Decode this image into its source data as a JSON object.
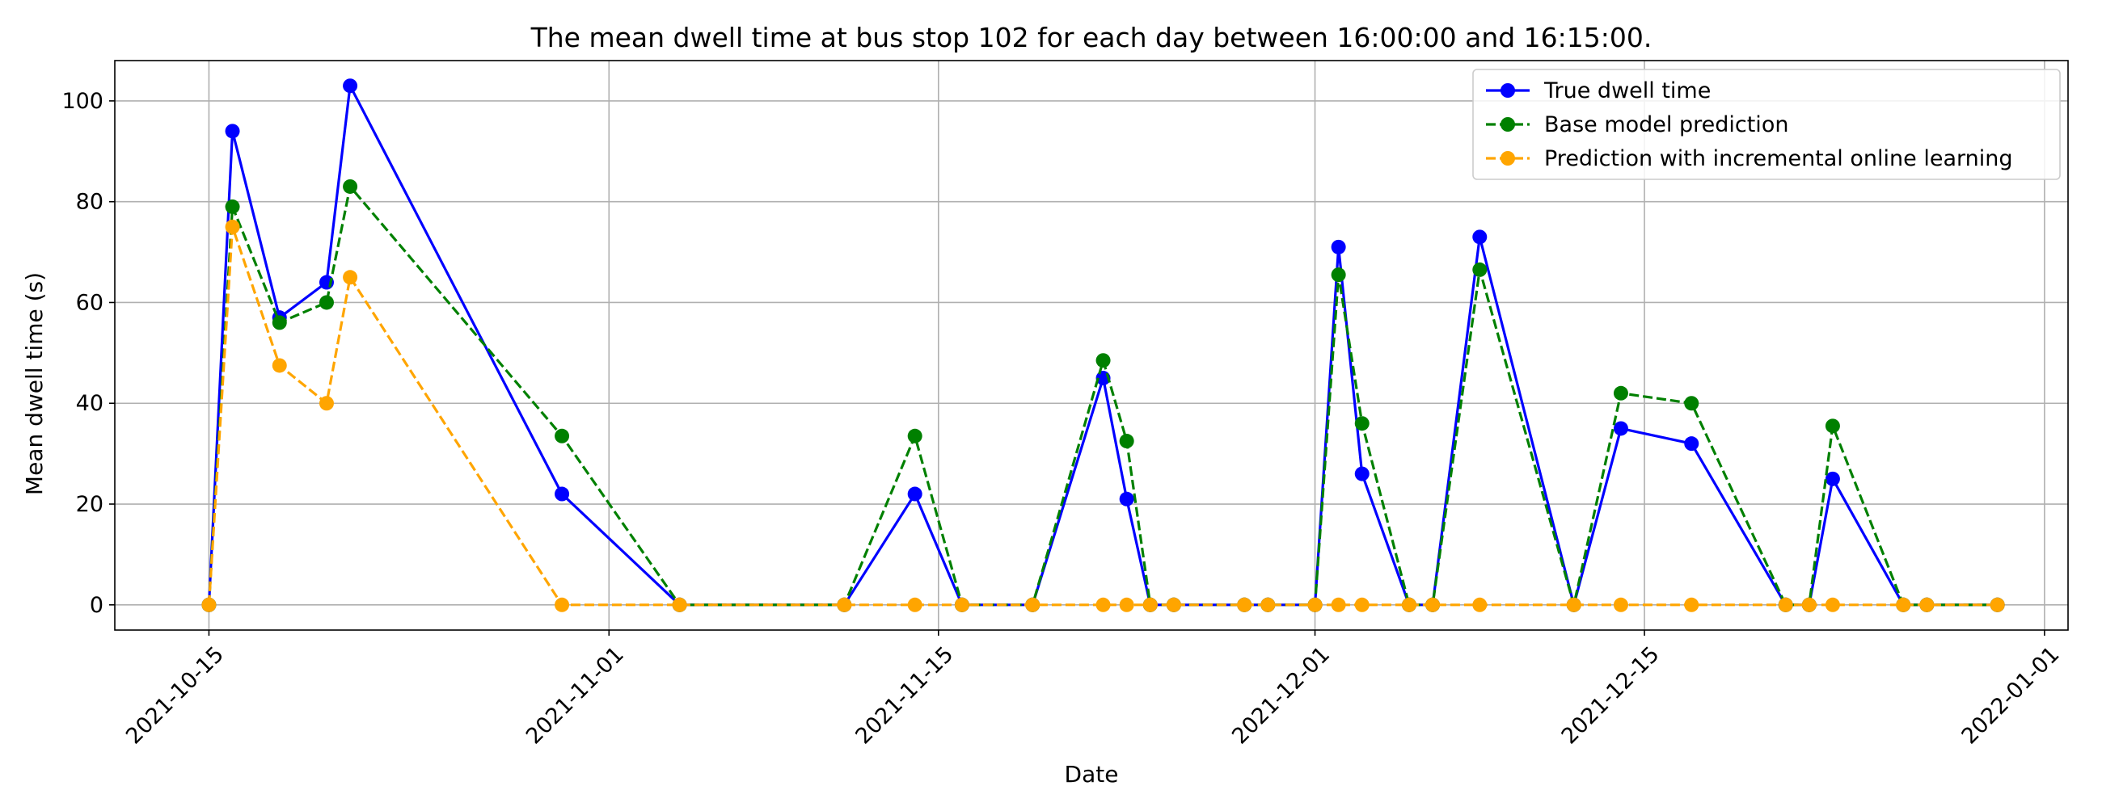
{
  "chart_data": {
    "type": "line",
    "title": "The mean dwell time at bus stop 102 for each day between 16:00:00 and 16:15:00.",
    "xlabel": "Date",
    "ylabel": "Mean dwell time (s)",
    "x_range": [
      "2021-10-11",
      "2022-01-02"
    ],
    "ylim": [
      -5,
      108
    ],
    "x_ticks": [
      "2021-10-15",
      "2021-11-01",
      "2021-11-15",
      "2021-12-01",
      "2021-12-15",
      "2022-01-01"
    ],
    "y_ticks": [
      0,
      20,
      40,
      60,
      80,
      100
    ],
    "grid": true,
    "legend_position": "top-right",
    "x": [
      "2021-10-15",
      "2021-10-16",
      "2021-10-18",
      "2021-10-20",
      "2021-10-21",
      "2021-10-30",
      "2021-11-04",
      "2021-11-11",
      "2021-11-14",
      "2021-11-16",
      "2021-11-19",
      "2021-11-22",
      "2021-11-23",
      "2021-11-24",
      "2021-11-25",
      "2021-11-28",
      "2021-11-29",
      "2021-12-01",
      "2021-12-02",
      "2021-12-03",
      "2021-12-05",
      "2021-12-06",
      "2021-12-08",
      "2021-12-12",
      "2021-12-14",
      "2021-12-17",
      "2021-12-21",
      "2021-12-22",
      "2021-12-23",
      "2021-12-26",
      "2021-12-27",
      "2021-12-30"
    ],
    "series": [
      {
        "name": "True dwell time",
        "color": "#0000ff",
        "linestyle": "solid",
        "values": [
          0,
          94,
          57,
          64,
          103,
          22,
          0,
          0,
          22,
          0,
          0,
          45,
          21,
          0,
          0,
          0,
          0,
          0,
          71,
          26,
          0,
          0,
          73,
          0,
          35,
          32,
          0,
          0,
          25,
          0,
          0,
          0
        ]
      },
      {
        "name": "Base model prediction",
        "color": "#008000",
        "linestyle": "dashed",
        "values": [
          0,
          79,
          56,
          60,
          83,
          33.5,
          0,
          0,
          33.5,
          0,
          0,
          48.5,
          32.5,
          0,
          0,
          0,
          0,
          0,
          65.5,
          36,
          0,
          0,
          66.5,
          0,
          42,
          40,
          0,
          0,
          35.5,
          0,
          0,
          0
        ]
      },
      {
        "name": "Prediction with incremental online learning",
        "color": "#ffa500",
        "linestyle": "dashed",
        "values": [
          0,
          75,
          47.5,
          40,
          65,
          0,
          0,
          0,
          0,
          0,
          0,
          0,
          0,
          0,
          0,
          0,
          0,
          0,
          0,
          0,
          0,
          0,
          0,
          0,
          0,
          0,
          0,
          0,
          0,
          0,
          0,
          0
        ]
      }
    ]
  }
}
